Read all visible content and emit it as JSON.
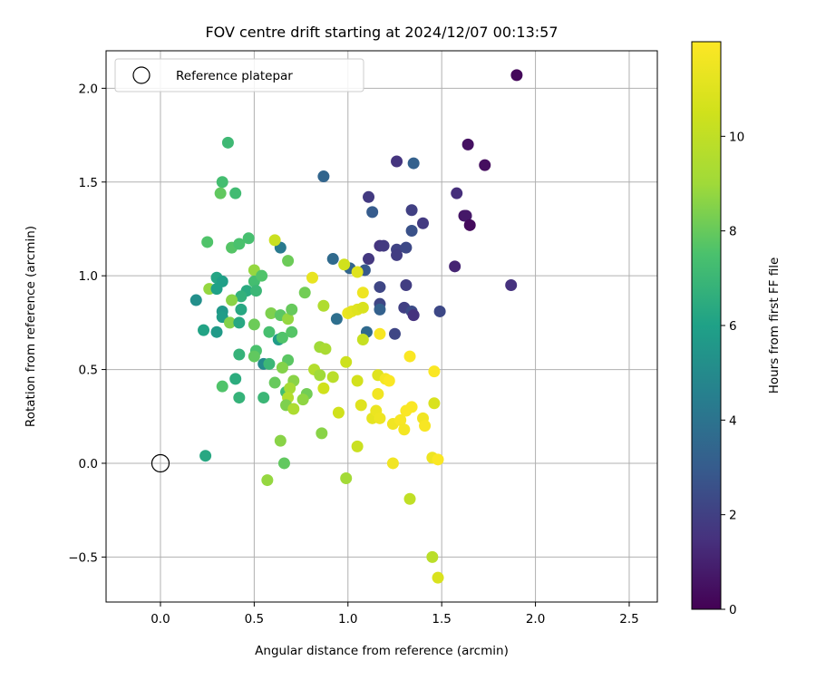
{
  "chart_data": {
    "type": "scatter",
    "title": "FOV centre drift starting at 2024/12/07 00:13:57",
    "xlabel": "Angular distance from reference (arcmin)",
    "ylabel": "Rotation from reference (arcmin)",
    "xlim": [
      -0.29,
      2.65
    ],
    "ylim": [
      -0.74,
      2.2
    ],
    "xticks": [
      0.0,
      0.5,
      1.0,
      1.5,
      2.0,
      2.5
    ],
    "xtick_labels": [
      "0.0",
      "0.5",
      "1.0",
      "1.5",
      "2.0",
      "2.5"
    ],
    "yticks": [
      -0.5,
      0.0,
      0.5,
      1.0,
      1.5,
      2.0
    ],
    "ytick_labels": [
      "−0.5",
      "0.0",
      "0.5",
      "1.0",
      "1.5",
      "2.0"
    ],
    "grid": true,
    "legend": {
      "placement": "top-left",
      "entries": [
        "Reference platepar"
      ]
    },
    "reference_point": {
      "x": 0.0,
      "y": 0.0,
      "label": "Reference platepar"
    },
    "colorbar": {
      "label": "Hours from first FF file",
      "colormap": "viridis",
      "range": [
        0,
        12
      ],
      "ticks": [
        0,
        2,
        4,
        6,
        8,
        10
      ],
      "tick_labels": [
        "0",
        "2",
        "4",
        "6",
        "8",
        "10"
      ]
    },
    "series": [
      {
        "points": [
          [
            1.9,
            2.07,
            0.2
          ],
          [
            1.64,
            1.7,
            0.5
          ],
          [
            1.73,
            1.59,
            0.4
          ],
          [
            1.62,
            1.32,
            0.6
          ],
          [
            1.63,
            1.32,
            0.7
          ],
          [
            1.65,
            1.27,
            0.3
          ],
          [
            1.57,
            1.05,
            1.1
          ],
          [
            1.87,
            0.95,
            1.5
          ],
          [
            1.58,
            1.44,
            1.4
          ],
          [
            1.26,
            1.61,
            1.6
          ],
          [
            1.35,
            1.6,
            3.2
          ],
          [
            0.87,
            1.53,
            3.4
          ],
          [
            1.11,
            1.42,
            1.8
          ],
          [
            1.13,
            1.34,
            3.0
          ],
          [
            1.34,
            1.35,
            2.0
          ],
          [
            1.4,
            1.28,
            1.8
          ],
          [
            1.34,
            1.24,
            2.6
          ],
          [
            1.17,
            1.16,
            1.6
          ],
          [
            1.19,
            1.16,
            1.8
          ],
          [
            1.26,
            1.14,
            2.1
          ],
          [
            1.31,
            1.15,
            2.3
          ],
          [
            1.26,
            1.11,
            1.9
          ],
          [
            1.11,
            1.09,
            1.7
          ],
          [
            0.92,
            1.09,
            3.6
          ],
          [
            1.01,
            1.04,
            3.4
          ],
          [
            1.09,
            1.03,
            2.9
          ],
          [
            1.17,
            0.94,
            2.2
          ],
          [
            1.31,
            0.95,
            1.9
          ],
          [
            1.17,
            0.85,
            2.2
          ],
          [
            1.17,
            0.82,
            3.2
          ],
          [
            1.3,
            0.83,
            2.0
          ],
          [
            1.34,
            0.81,
            2.4
          ],
          [
            1.35,
            0.79,
            1.5
          ],
          [
            1.49,
            0.81,
            2.3
          ],
          [
            0.94,
            0.77,
            3.8
          ],
          [
            1.1,
            0.7,
            3.6
          ],
          [
            1.25,
            0.69,
            2.2
          ],
          [
            0.36,
            1.71,
            7.1
          ],
          [
            0.33,
            1.5,
            7.3
          ],
          [
            0.32,
            1.44,
            7.9
          ],
          [
            0.4,
            1.44,
            7.2
          ],
          [
            0.47,
            1.2,
            7.4
          ],
          [
            0.25,
            1.18,
            7.6
          ],
          [
            0.38,
            1.15,
            7.7
          ],
          [
            0.42,
            1.17,
            7.5
          ],
          [
            0.64,
            1.15,
            4.3
          ],
          [
            0.61,
            1.19,
            10.3
          ],
          [
            0.68,
            1.08,
            8.1
          ],
          [
            0.5,
            1.03,
            8.8
          ],
          [
            0.3,
            0.99,
            6.2
          ],
          [
            0.33,
            0.97,
            5.9
          ],
          [
            0.5,
            0.97,
            7.3
          ],
          [
            0.54,
            1.0,
            7.6
          ],
          [
            0.26,
            0.93,
            8.8
          ],
          [
            0.3,
            0.93,
            6.0
          ],
          [
            0.46,
            0.92,
            6.4
          ],
          [
            0.51,
            0.92,
            7.0
          ],
          [
            0.43,
            0.89,
            6.7
          ],
          [
            0.38,
            0.87,
            8.6
          ],
          [
            0.19,
            0.87,
            5.2
          ],
          [
            0.33,
            0.81,
            5.6
          ],
          [
            0.33,
            0.78,
            5.8
          ],
          [
            0.43,
            0.82,
            6.3
          ],
          [
            0.23,
            0.71,
            6.1
          ],
          [
            0.3,
            0.7,
            5.7
          ],
          [
            0.37,
            0.75,
            8.5
          ],
          [
            0.42,
            0.75,
            6.3
          ],
          [
            0.5,
            0.74,
            8.1
          ],
          [
            0.59,
            0.8,
            8.4
          ],
          [
            0.64,
            0.79,
            7.8
          ],
          [
            0.68,
            0.77,
            8.8
          ],
          [
            0.7,
            0.82,
            8.0
          ],
          [
            0.63,
            0.66,
            5.8
          ],
          [
            0.58,
            0.7,
            7.4
          ],
          [
            0.65,
            0.67,
            7.6
          ],
          [
            0.7,
            0.7,
            7.7
          ],
          [
            0.42,
            0.58,
            6.8
          ],
          [
            0.51,
            0.6,
            7.5
          ],
          [
            0.5,
            0.57,
            7.9
          ],
          [
            0.55,
            0.53,
            5.0
          ],
          [
            0.58,
            0.53,
            7.0
          ],
          [
            0.68,
            0.55,
            7.8
          ],
          [
            0.65,
            0.51,
            8.5
          ],
          [
            0.4,
            0.45,
            6.5
          ],
          [
            0.33,
            0.41,
            7.6
          ],
          [
            0.42,
            0.35,
            6.8
          ],
          [
            0.55,
            0.35,
            7.0
          ],
          [
            0.61,
            0.43,
            8.0
          ],
          [
            0.67,
            0.38,
            7.3
          ],
          [
            0.71,
            0.44,
            8.6
          ],
          [
            0.69,
            0.4,
            9.2
          ],
          [
            0.68,
            0.35,
            9.6
          ],
          [
            0.67,
            0.31,
            8.4
          ],
          [
            0.71,
            0.29,
            9.4
          ],
          [
            0.78,
            0.37,
            8.2
          ],
          [
            0.76,
            0.34,
            8.7
          ],
          [
            0.77,
            0.91,
            8.2
          ],
          [
            0.24,
            0.04,
            6.3
          ],
          [
            0.64,
            0.12,
            8.6
          ],
          [
            0.66,
            0.0,
            7.9
          ],
          [
            0.57,
            -0.09,
            8.8
          ],
          [
            0.81,
            0.99,
            11.3
          ],
          [
            0.98,
            1.06,
            10.5
          ],
          [
            1.05,
            1.02,
            11.0
          ],
          [
            0.87,
            0.84,
            9.5
          ],
          [
            1.0,
            0.8,
            11.4
          ],
          [
            1.02,
            0.81,
            11.2
          ],
          [
            1.05,
            0.82,
            11.0
          ],
          [
            1.08,
            0.91,
            11.5
          ],
          [
            1.08,
            0.83,
            10.8
          ],
          [
            1.08,
            0.66,
            10.2
          ],
          [
            1.17,
            0.69,
            11.8
          ],
          [
            0.85,
            0.62,
            9.0
          ],
          [
            0.88,
            0.61,
            9.3
          ],
          [
            0.82,
            0.5,
            9.6
          ],
          [
            0.85,
            0.47,
            9.0
          ],
          [
            0.92,
            0.46,
            9.8
          ],
          [
            0.99,
            0.54,
            10.4
          ],
          [
            0.87,
            0.4,
            10.5
          ],
          [
            1.05,
            0.44,
            10.6
          ],
          [
            1.16,
            0.47,
            11.0
          ],
          [
            1.2,
            0.45,
            11.7
          ],
          [
            1.22,
            0.44,
            11.9
          ],
          [
            1.33,
            0.57,
            11.9
          ],
          [
            1.46,
            0.49,
            11.9
          ],
          [
            1.16,
            0.37,
            11.6
          ],
          [
            1.07,
            0.31,
            11.0
          ],
          [
            1.13,
            0.24,
            11.2
          ],
          [
            1.15,
            0.28,
            11.4
          ],
          [
            1.17,
            0.24,
            11.5
          ],
          [
            1.24,
            0.21,
            11.6
          ],
          [
            1.28,
            0.23,
            11.8
          ],
          [
            1.3,
            0.18,
            11.7
          ],
          [
            1.31,
            0.28,
            11.9
          ],
          [
            1.34,
            0.3,
            11.9
          ],
          [
            1.4,
            0.24,
            11.6
          ],
          [
            1.41,
            0.2,
            11.8
          ],
          [
            1.46,
            0.32,
            10.8
          ],
          [
            1.45,
            0.03,
            11.5
          ],
          [
            1.48,
            0.02,
            11.9
          ],
          [
            1.24,
            0.0,
            11.6
          ],
          [
            0.95,
            0.27,
            10.5
          ],
          [
            1.05,
            0.09,
            10.3
          ],
          [
            0.86,
            0.16,
            8.6
          ],
          [
            0.99,
            -0.08,
            9.1
          ],
          [
            1.33,
            -0.19,
            10.0
          ],
          [
            1.45,
            -0.5,
            9.8
          ],
          [
            1.48,
            -0.61,
            10.8
          ]
        ]
      }
    ]
  }
}
